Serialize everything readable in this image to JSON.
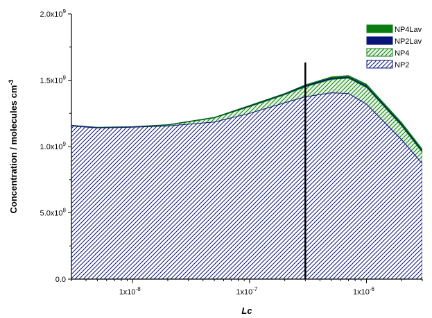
{
  "chart_data": {
    "type": "area",
    "xlabel": "Lc",
    "ylabel": "Concentration / molecules cm-3",
    "ylabel_main": "Concentration / molecules cm",
    "ylabel_sup": "-3",
    "x_scale": "log",
    "xlim": [
      3e-09,
      3e-06
    ],
    "ylim": [
      0,
      2000000000
    ],
    "x_ticks": [
      {
        "value": 1e-08,
        "base": "1x10",
        "exp": "-8"
      },
      {
        "value": 1e-07,
        "base": "1x10",
        "exp": "-7"
      },
      {
        "value": 1e-06,
        "base": "1x10",
        "exp": "-6"
      }
    ],
    "y_ticks": [
      {
        "value": 0,
        "base": "0.0",
        "exp": ""
      },
      {
        "value": 500000000,
        "base": "5.0x10",
        "exp": "8"
      },
      {
        "value": 1000000000,
        "base": "1.0x10",
        "exp": "9"
      },
      {
        "value": 1500000000,
        "base": "1.5x10",
        "exp": "9"
      },
      {
        "value": 2000000000,
        "base": "2.0x10",
        "exp": "9"
      }
    ],
    "vertical_line": {
      "x": 3e-07
    },
    "legend_position": "top-right",
    "series": [
      {
        "name": "NP4Lav",
        "fill": "solid",
        "color": "#0a7d10",
        "x": [
          3e-09,
          5e-09,
          1e-08,
          2e-08,
          5e-08,
          1e-07,
          2e-07,
          3e-07,
          5e-07,
          7e-07,
          1e-06,
          2e-06,
          3e-06
        ],
        "y": [
          1160000000,
          1145000000,
          1150000000,
          1165000000,
          1220000000,
          1310000000,
          1400000000,
          1465000000,
          1525000000,
          1535000000,
          1470000000,
          1180000000,
          980000000
        ]
      },
      {
        "name": "NP2Lav",
        "fill": "solid",
        "color": "#0a137a",
        "x": [
          3e-09,
          5e-09,
          1e-08,
          2e-08,
          5e-08,
          1e-07,
          2e-07,
          3e-07,
          5e-07,
          7e-07,
          1e-06,
          2e-06,
          3e-06
        ],
        "y": [
          1158000000,
          1143000000,
          1148000000,
          1163000000,
          1217000000,
          1305000000,
          1395000000,
          1458000000,
          1515000000,
          1523000000,
          1455000000,
          1165000000,
          965000000
        ]
      },
      {
        "name": "NP4",
        "fill": "hatch",
        "color": "#0a7d10",
        "x": [
          3e-09,
          5e-09,
          1e-08,
          2e-08,
          5e-08,
          1e-07,
          2e-07,
          3e-07,
          5e-07,
          7e-07,
          1e-06,
          2e-06,
          3e-06
        ],
        "y": [
          1155000000,
          1141000000,
          1146000000,
          1161000000,
          1215000000,
          1300000000,
          1390000000,
          1450000000,
          1505000000,
          1515000000,
          1445000000,
          1155000000,
          955000000
        ]
      },
      {
        "name": "NP2",
        "fill": "hatch",
        "color": "#0a137a",
        "x": [
          3e-09,
          5e-09,
          1e-08,
          2e-08,
          5e-08,
          1e-07,
          2e-07,
          3e-07,
          5e-07,
          7e-07,
          1e-06,
          2e-06,
          3e-06
        ],
        "y": [
          1155000000,
          1140000000,
          1145000000,
          1155000000,
          1185000000,
          1250000000,
          1330000000,
          1375000000,
          1405000000,
          1400000000,
          1320000000,
          1050000000,
          870000000
        ]
      }
    ]
  }
}
